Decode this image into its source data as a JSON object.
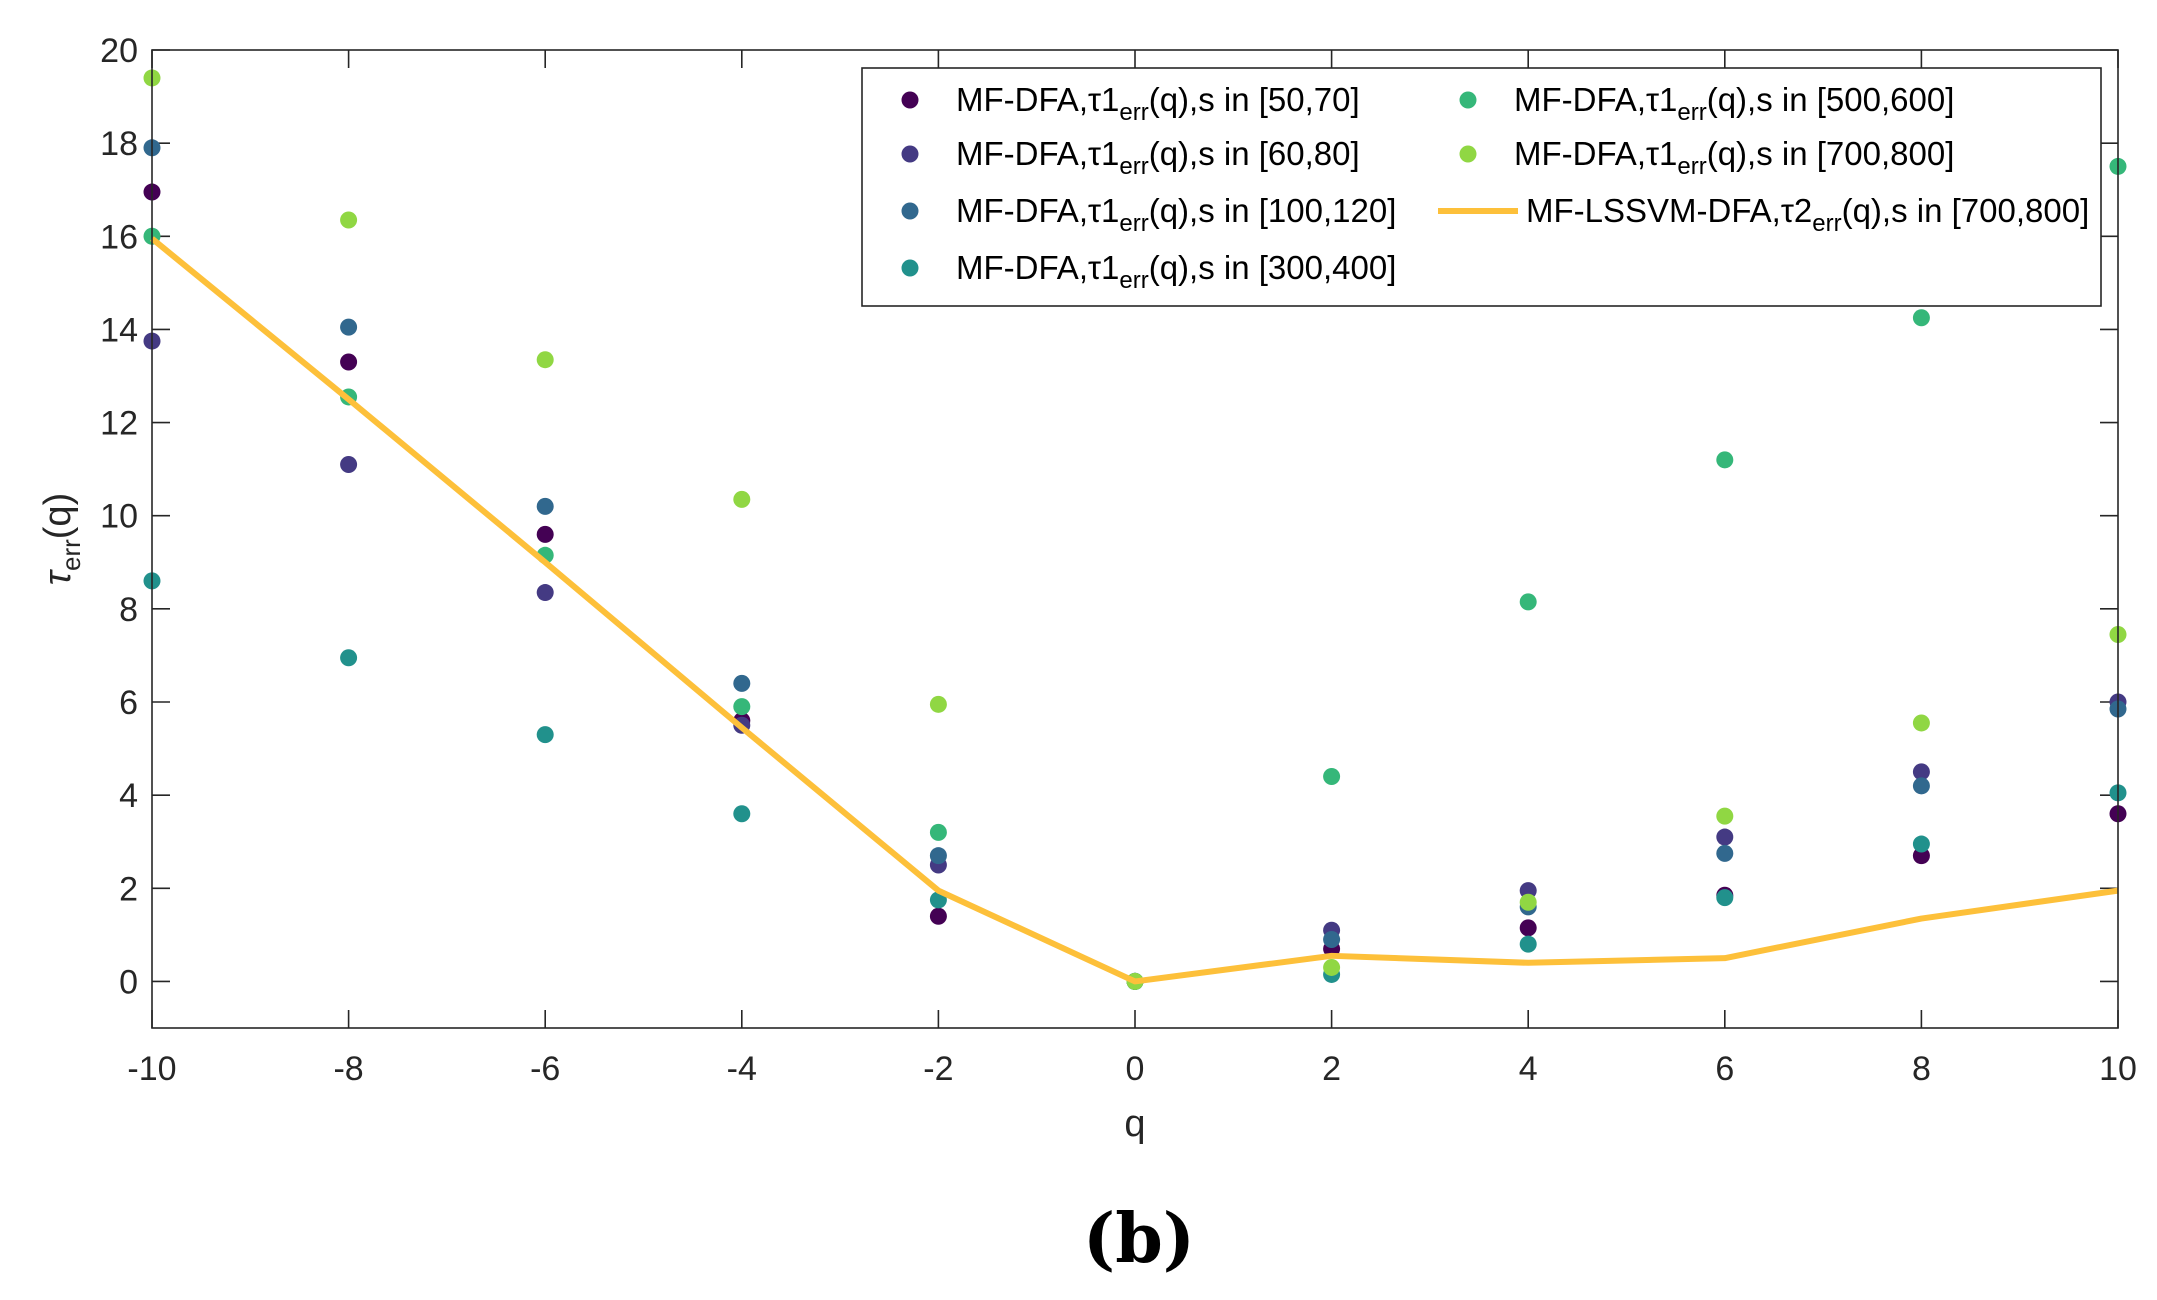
{
  "chart_data": {
    "type": "scatter",
    "panel_label": "(b)",
    "xlabel": "q",
    "ylabel": {
      "base": "τ",
      "sub": "err",
      "tail": "(q)"
    },
    "xlim": [
      -10,
      10
    ],
    "ylim": [
      -1,
      20
    ],
    "xticks": [
      -10,
      -8,
      -6,
      -4,
      -2,
      0,
      2,
      4,
      6,
      8,
      10
    ],
    "yticks": [
      0,
      2,
      4,
      6,
      8,
      10,
      12,
      14,
      16,
      18,
      20
    ],
    "legend_position": "top-right",
    "x": [
      -10,
      -8,
      -6,
      -4,
      -2,
      0,
      2,
      4,
      6,
      8,
      10
    ],
    "series": [
      {
        "name": "MF-DFA,τ1err(q),s in [50,70]",
        "label_pre": "MF-DFA,τ1",
        "label_sub": "err",
        "label_post": "(q),s in [50,70]",
        "color": "#440154",
        "mode": "markers",
        "values": [
          16.95,
          13.3,
          9.6,
          5.6,
          1.4,
          0,
          0.7,
          1.15,
          1.85,
          2.7,
          3.6
        ]
      },
      {
        "name": "MF-DFA,τ1err(q),s in [60,80]",
        "label_pre": "MF-DFA,τ1",
        "label_sub": "err",
        "label_post": "(q),s in [60,80]",
        "color": "#443a83",
        "mode": "markers",
        "values": [
          13.75,
          11.1,
          8.35,
          5.5,
          2.5,
          0,
          1.1,
          1.95,
          3.1,
          4.5,
          6.0
        ]
      },
      {
        "name": "MF-DFA,τ1err(q),s in [100,120]",
        "label_pre": "MF-DFA,τ1",
        "label_sub": "err",
        "label_post": "(q),s in [100,120]",
        "color": "#31688e",
        "mode": "markers",
        "values": [
          17.9,
          14.05,
          10.2,
          6.4,
          2.7,
          0,
          0.9,
          1.6,
          2.75,
          4.2,
          5.85
        ]
      },
      {
        "name": "MF-DFA,τ1err(q),s in [300,400]",
        "label_pre": "MF-DFA,τ1",
        "label_sub": "err",
        "label_post": "(q),s in [300,400]",
        "color": "#21918c",
        "mode": "markers",
        "values": [
          8.6,
          6.95,
          5.3,
          3.6,
          1.75,
          0,
          0.15,
          0.8,
          1.8,
          2.95,
          4.05
        ]
      },
      {
        "name": "MF-DFA,τ1err(q),s in [500,600]",
        "label_pre": "MF-DFA,τ1",
        "label_sub": "err",
        "label_post": "(q),s in [500,600]",
        "color": "#35b779",
        "mode": "markers",
        "values": [
          16.0,
          12.55,
          9.15,
          5.9,
          3.2,
          0,
          4.4,
          8.15,
          11.2,
          14.25,
          17.5
        ]
      },
      {
        "name": "MF-DFA,τ1err(q),s in [700,800]",
        "label_pre": "MF-DFA,τ1",
        "label_sub": "err",
        "label_post": "(q),s in [700,800]",
        "color": "#90d743",
        "mode": "markers",
        "values": [
          19.4,
          16.35,
          13.35,
          10.35,
          5.95,
          0,
          0.3,
          1.7,
          3.55,
          5.55,
          7.45
        ]
      },
      {
        "name": "MF-LSSVM-DFA,τ2err(q),s in [700,800]",
        "label_pre": "MF-LSSVM-DFA,τ2",
        "label_sub": "err",
        "label_post": "(q),s in [700,800]",
        "color": "#fdc03a",
        "mode": "line",
        "values": [
          15.95,
          12.5,
          9.0,
          5.45,
          1.95,
          0,
          0.55,
          0.4,
          0.5,
          1.35,
          1.95
        ]
      }
    ]
  }
}
